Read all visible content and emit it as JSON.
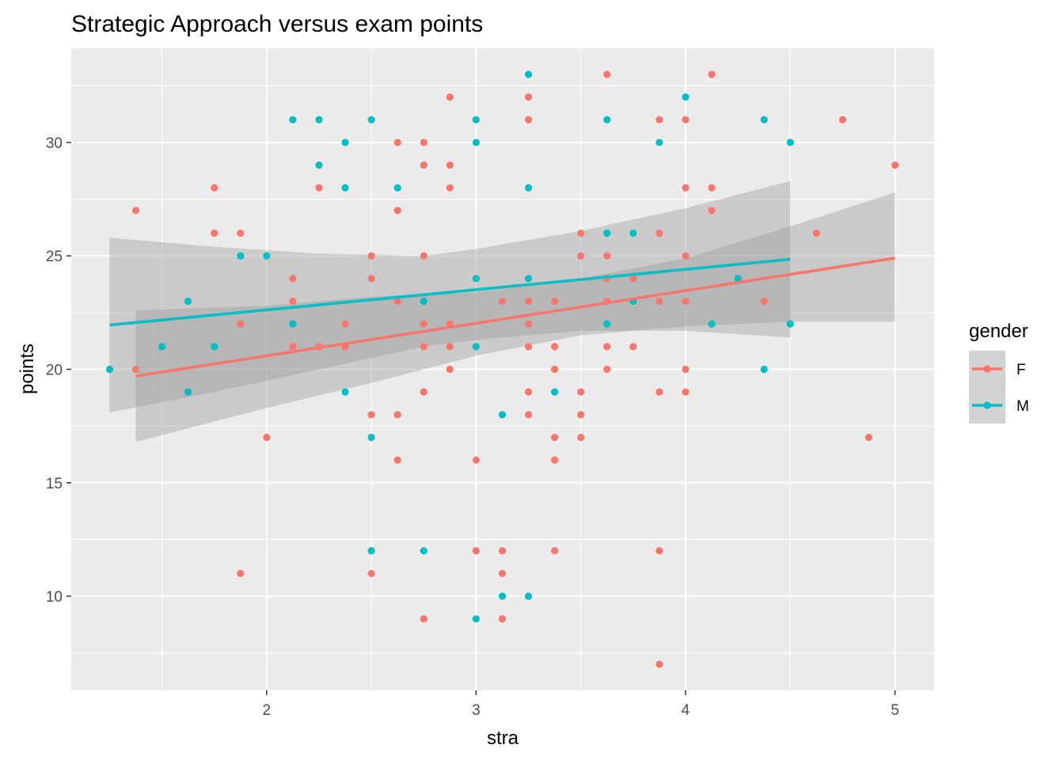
{
  "chart_data": {
    "type": "scatter",
    "title": "Strategic Approach versus exam points",
    "xlabel": "stra",
    "ylabel": "points",
    "xlim": [
      1.067,
      5.187
    ],
    "ylim": [
      5.85,
      34.15
    ],
    "x_major_ticks": [
      2,
      3,
      4,
      5
    ],
    "x_minor_ticks": [
      1.5,
      2.5,
      3.5,
      4.5
    ],
    "y_major_ticks": [
      10,
      15,
      20,
      25,
      30
    ],
    "y_minor_ticks": [
      7.5,
      12.5,
      17.5,
      22.5,
      27.5,
      32.5
    ],
    "x_tick_labels": [
      "2",
      "3",
      "4",
      "5"
    ],
    "y_tick_labels": [
      "10",
      "15",
      "20",
      "25",
      "30"
    ],
    "grid": true,
    "background": "grey",
    "legend": {
      "title": "gender",
      "position": "right",
      "entries": [
        "F",
        "M"
      ]
    },
    "colors": {
      "F": "#F8766D",
      "M": "#00BFC4",
      "ribbon": "#999999",
      "panel": "#EBEBEB"
    },
    "series": [
      {
        "name": "F",
        "points": [
          [
            1.375,
            27
          ],
          [
            1.375,
            20
          ],
          [
            1.75,
            28
          ],
          [
            1.75,
            26
          ],
          [
            1.875,
            26
          ],
          [
            1.875,
            22
          ],
          [
            1.875,
            11
          ],
          [
            2.0,
            17
          ],
          [
            2.125,
            24
          ],
          [
            2.125,
            23
          ],
          [
            2.125,
            21
          ],
          [
            2.25,
            28
          ],
          [
            2.25,
            21
          ],
          [
            2.375,
            22
          ],
          [
            2.375,
            21
          ],
          [
            2.5,
            25
          ],
          [
            2.5,
            24
          ],
          [
            2.5,
            18
          ],
          [
            2.5,
            11
          ],
          [
            2.625,
            30
          ],
          [
            2.625,
            27
          ],
          [
            2.625,
            23
          ],
          [
            2.625,
            18
          ],
          [
            2.625,
            16
          ],
          [
            2.75,
            30
          ],
          [
            2.75,
            29
          ],
          [
            2.75,
            25
          ],
          [
            2.75,
            22
          ],
          [
            2.75,
            21
          ],
          [
            2.75,
            19
          ],
          [
            2.75,
            9
          ],
          [
            2.875,
            32
          ],
          [
            2.875,
            29
          ],
          [
            2.875,
            28
          ],
          [
            2.875,
            22
          ],
          [
            2.875,
            21
          ],
          [
            2.875,
            20
          ],
          [
            3.0,
            16
          ],
          [
            3.0,
            12
          ],
          [
            3.125,
            23
          ],
          [
            3.125,
            12
          ],
          [
            3.125,
            11
          ],
          [
            3.125,
            9
          ],
          [
            3.25,
            32
          ],
          [
            3.25,
            31
          ],
          [
            3.25,
            23
          ],
          [
            3.25,
            22
          ],
          [
            3.25,
            21
          ],
          [
            3.25,
            19
          ],
          [
            3.25,
            18
          ],
          [
            3.375,
            23
          ],
          [
            3.375,
            21
          ],
          [
            3.375,
            20
          ],
          [
            3.375,
            17
          ],
          [
            3.375,
            16
          ],
          [
            3.375,
            12
          ],
          [
            3.5,
            26
          ],
          [
            3.5,
            25
          ],
          [
            3.5,
            19
          ],
          [
            3.5,
            18
          ],
          [
            3.5,
            17
          ],
          [
            3.625,
            33
          ],
          [
            3.625,
            25
          ],
          [
            3.625,
            24
          ],
          [
            3.625,
            23
          ],
          [
            3.625,
            21
          ],
          [
            3.625,
            20
          ],
          [
            3.75,
            24
          ],
          [
            3.75,
            21
          ],
          [
            3.875,
            31
          ],
          [
            3.875,
            26
          ],
          [
            3.875,
            23
          ],
          [
            3.875,
            19
          ],
          [
            3.875,
            12
          ],
          [
            3.875,
            7
          ],
          [
            4.0,
            31
          ],
          [
            4.0,
            28
          ],
          [
            4.0,
            25
          ],
          [
            4.0,
            23
          ],
          [
            4.0,
            20
          ],
          [
            4.0,
            19
          ],
          [
            4.125,
            33
          ],
          [
            4.125,
            28
          ],
          [
            4.125,
            27
          ],
          [
            4.375,
            23
          ],
          [
            4.625,
            26
          ],
          [
            4.75,
            31
          ],
          [
            4.875,
            17
          ],
          [
            5.0,
            29
          ]
        ],
        "fit": {
          "x_start": 1.375,
          "x_end": 5.0,
          "y_start": 19.7,
          "y_end": 24.9
        },
        "ci_band": [
          [
            1.375,
            16.8,
            22.6
          ],
          [
            2.0,
            18.3,
            22.8
          ],
          [
            2.5,
            19.4,
            23.2
          ],
          [
            3.0,
            20.6,
            23.4
          ],
          [
            3.5,
            21.5,
            24.0
          ],
          [
            4.0,
            21.9,
            24.9
          ],
          [
            4.5,
            22.1,
            26.3
          ],
          [
            5.0,
            22.1,
            27.8
          ]
        ]
      },
      {
        "name": "M",
        "points": [
          [
            1.25,
            20
          ],
          [
            1.5,
            21
          ],
          [
            1.625,
            23
          ],
          [
            1.625,
            19
          ],
          [
            1.75,
            21
          ],
          [
            1.875,
            25
          ],
          [
            2.0,
            25
          ],
          [
            2.125,
            31
          ],
          [
            2.125,
            22
          ],
          [
            2.25,
            31
          ],
          [
            2.25,
            29
          ],
          [
            2.375,
            30
          ],
          [
            2.375,
            28
          ],
          [
            2.375,
            19
          ],
          [
            2.5,
            31
          ],
          [
            2.5,
            17
          ],
          [
            2.5,
            12
          ],
          [
            2.625,
            28
          ],
          [
            2.75,
            23
          ],
          [
            2.75,
            12
          ],
          [
            3.0,
            31
          ],
          [
            3.0,
            30
          ],
          [
            3.0,
            24
          ],
          [
            3.0,
            21
          ],
          [
            3.0,
            9
          ],
          [
            3.125,
            18
          ],
          [
            3.125,
            10
          ],
          [
            3.25,
            33
          ],
          [
            3.25,
            28
          ],
          [
            3.25,
            24
          ],
          [
            3.25,
            10
          ],
          [
            3.375,
            19
          ],
          [
            3.625,
            31
          ],
          [
            3.625,
            26
          ],
          [
            3.625,
            22
          ],
          [
            3.75,
            26
          ],
          [
            3.75,
            23
          ],
          [
            3.875,
            30
          ],
          [
            4.0,
            32
          ],
          [
            4.125,
            22
          ],
          [
            4.25,
            24
          ],
          [
            4.375,
            31
          ],
          [
            4.375,
            20
          ],
          [
            4.5,
            30
          ],
          [
            4.5,
            22
          ]
        ],
        "fit": {
          "x_start": 1.25,
          "x_end": 4.5,
          "y_start": 21.95,
          "y_end": 24.85
        },
        "ci_band": [
          [
            1.25,
            18.1,
            25.8
          ],
          [
            1.75,
            19.0,
            25.4
          ],
          [
            2.25,
            20.0,
            25.1
          ],
          [
            2.75,
            21.0,
            25.0
          ],
          [
            3.0,
            21.3,
            25.3
          ],
          [
            3.5,
            21.7,
            26.1
          ],
          [
            4.0,
            21.7,
            27.1
          ],
          [
            4.5,
            21.4,
            28.3
          ]
        ]
      }
    ]
  }
}
